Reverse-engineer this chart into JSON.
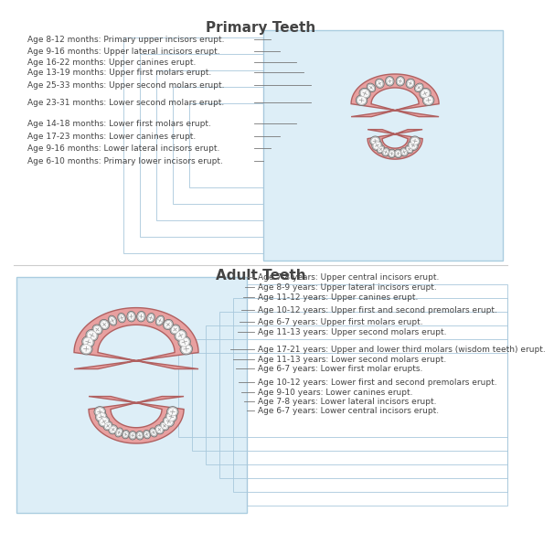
{
  "title1": "Primary Teeth",
  "title2": "Adult Teeth",
  "bg_color": "#ddeef7",
  "box_edge_color": "#aacde0",
  "primary_labels": [
    "Age 8-12 months: Primary upper incisors erupt.",
    "Age 9-16 months: Upper lateral incisors erupt.",
    "Age 16-22 months: Upper canines erupt.",
    "Age 13-19 months: Upper first molars erupt.",
    "Age 25-33 months: Upper second molars erupt.",
    "Age 23-31 months: Lower second molars erupt.",
    "Age 14-18 months: Lower first molars erupt.",
    "Age 17-23 months: Lower canines erupt.",
    "Age 9-16 months: Lower lateral incisors erupt.",
    "Age 6-10 months: Primary lower incisors erupt."
  ],
  "adult_labels": [
    "Age 7-8 years: Upper central incisors erupt.",
    "Age 8-9 years: Upper lateral incisors erupt.",
    "Age 11-12 years: Upper canines erupt.",
    "Age 10-12 years: Upper first and second premolars erupt.",
    "Age 6-7 years: Upper first molars erupt.",
    "Age 11-13 years: Upper second molars erupt.",
    "Age 17-21 years: Upper and lower third molars (wisdom teeth) erupt.",
    "Age 11-13 years: Lower second molars erupt.",
    "Age 6-7 years: Lower first molar erupts.",
    "Age 10-12 years: Lower first and second premolars erupt.",
    "Age 9-10 years: Lower canines erupt.",
    "Age 7-8 years: Lower lateral incisors erupt.",
    "Age 6-7 years: Lower central incisors erupt."
  ],
  "title_fontsize": 11,
  "label_fontsize": 6.5,
  "font_color": "#444444",
  "line_color": "#777777",
  "gum_color": "#e8a0a0",
  "gum_edge": "#b06060"
}
